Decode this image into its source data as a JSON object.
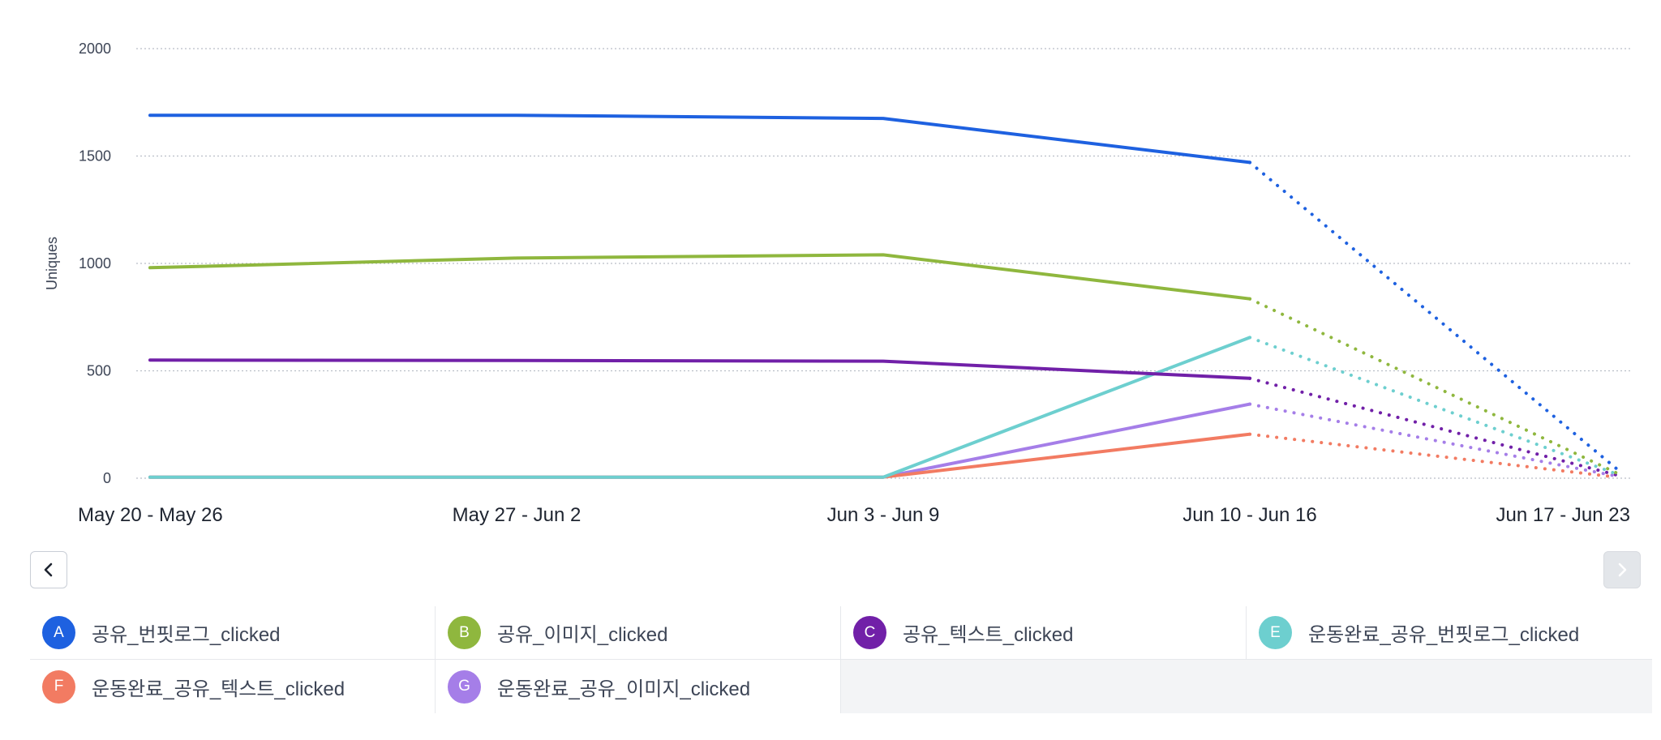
{
  "chart_data": {
    "type": "line",
    "title": "",
    "xlabel": "",
    "ylabel": "Uniques",
    "ylim": [
      0,
      2000
    ],
    "yticks": [
      0,
      500,
      1000,
      1500,
      2000
    ],
    "grid": true,
    "categories": [
      "May 20 - May 26",
      "May 27 - Jun 2",
      "Jun 3 - Jun 9",
      "Jun 10 - Jun 16",
      "Jun 17 - Jun 23"
    ],
    "incomplete_from_index": 3,
    "series": [
      {
        "badge": "A",
        "name": "공유_번핏로그_clicked",
        "color": "#1e61e0",
        "values": [
          1690,
          1690,
          1675,
          1470,
          45
        ]
      },
      {
        "badge": "B",
        "name": "공유_이미지_clicked",
        "color": "#8fb73e",
        "values": [
          980,
          1025,
          1040,
          835,
          25
        ]
      },
      {
        "badge": "C",
        "name": "공유_텍스트_clicked",
        "color": "#7120a8",
        "values": [
          550,
          548,
          545,
          465,
          15
        ]
      },
      {
        "badge": "E",
        "name": "운동완료_공유_번핏로그_clicked",
        "color": "#6dcfcf",
        "values": [
          5,
          5,
          5,
          655,
          20
        ]
      },
      {
        "badge": "F",
        "name": "운동완료_공유_텍스트_clicked",
        "color": "#f27b62",
        "values": [
          5,
          5,
          5,
          205,
          5
        ]
      },
      {
        "badge": "G",
        "name": "운동완료_공유_이미지_clicked",
        "color": "#a57ee8",
        "values": [
          5,
          5,
          5,
          345,
          10
        ]
      }
    ]
  }
}
